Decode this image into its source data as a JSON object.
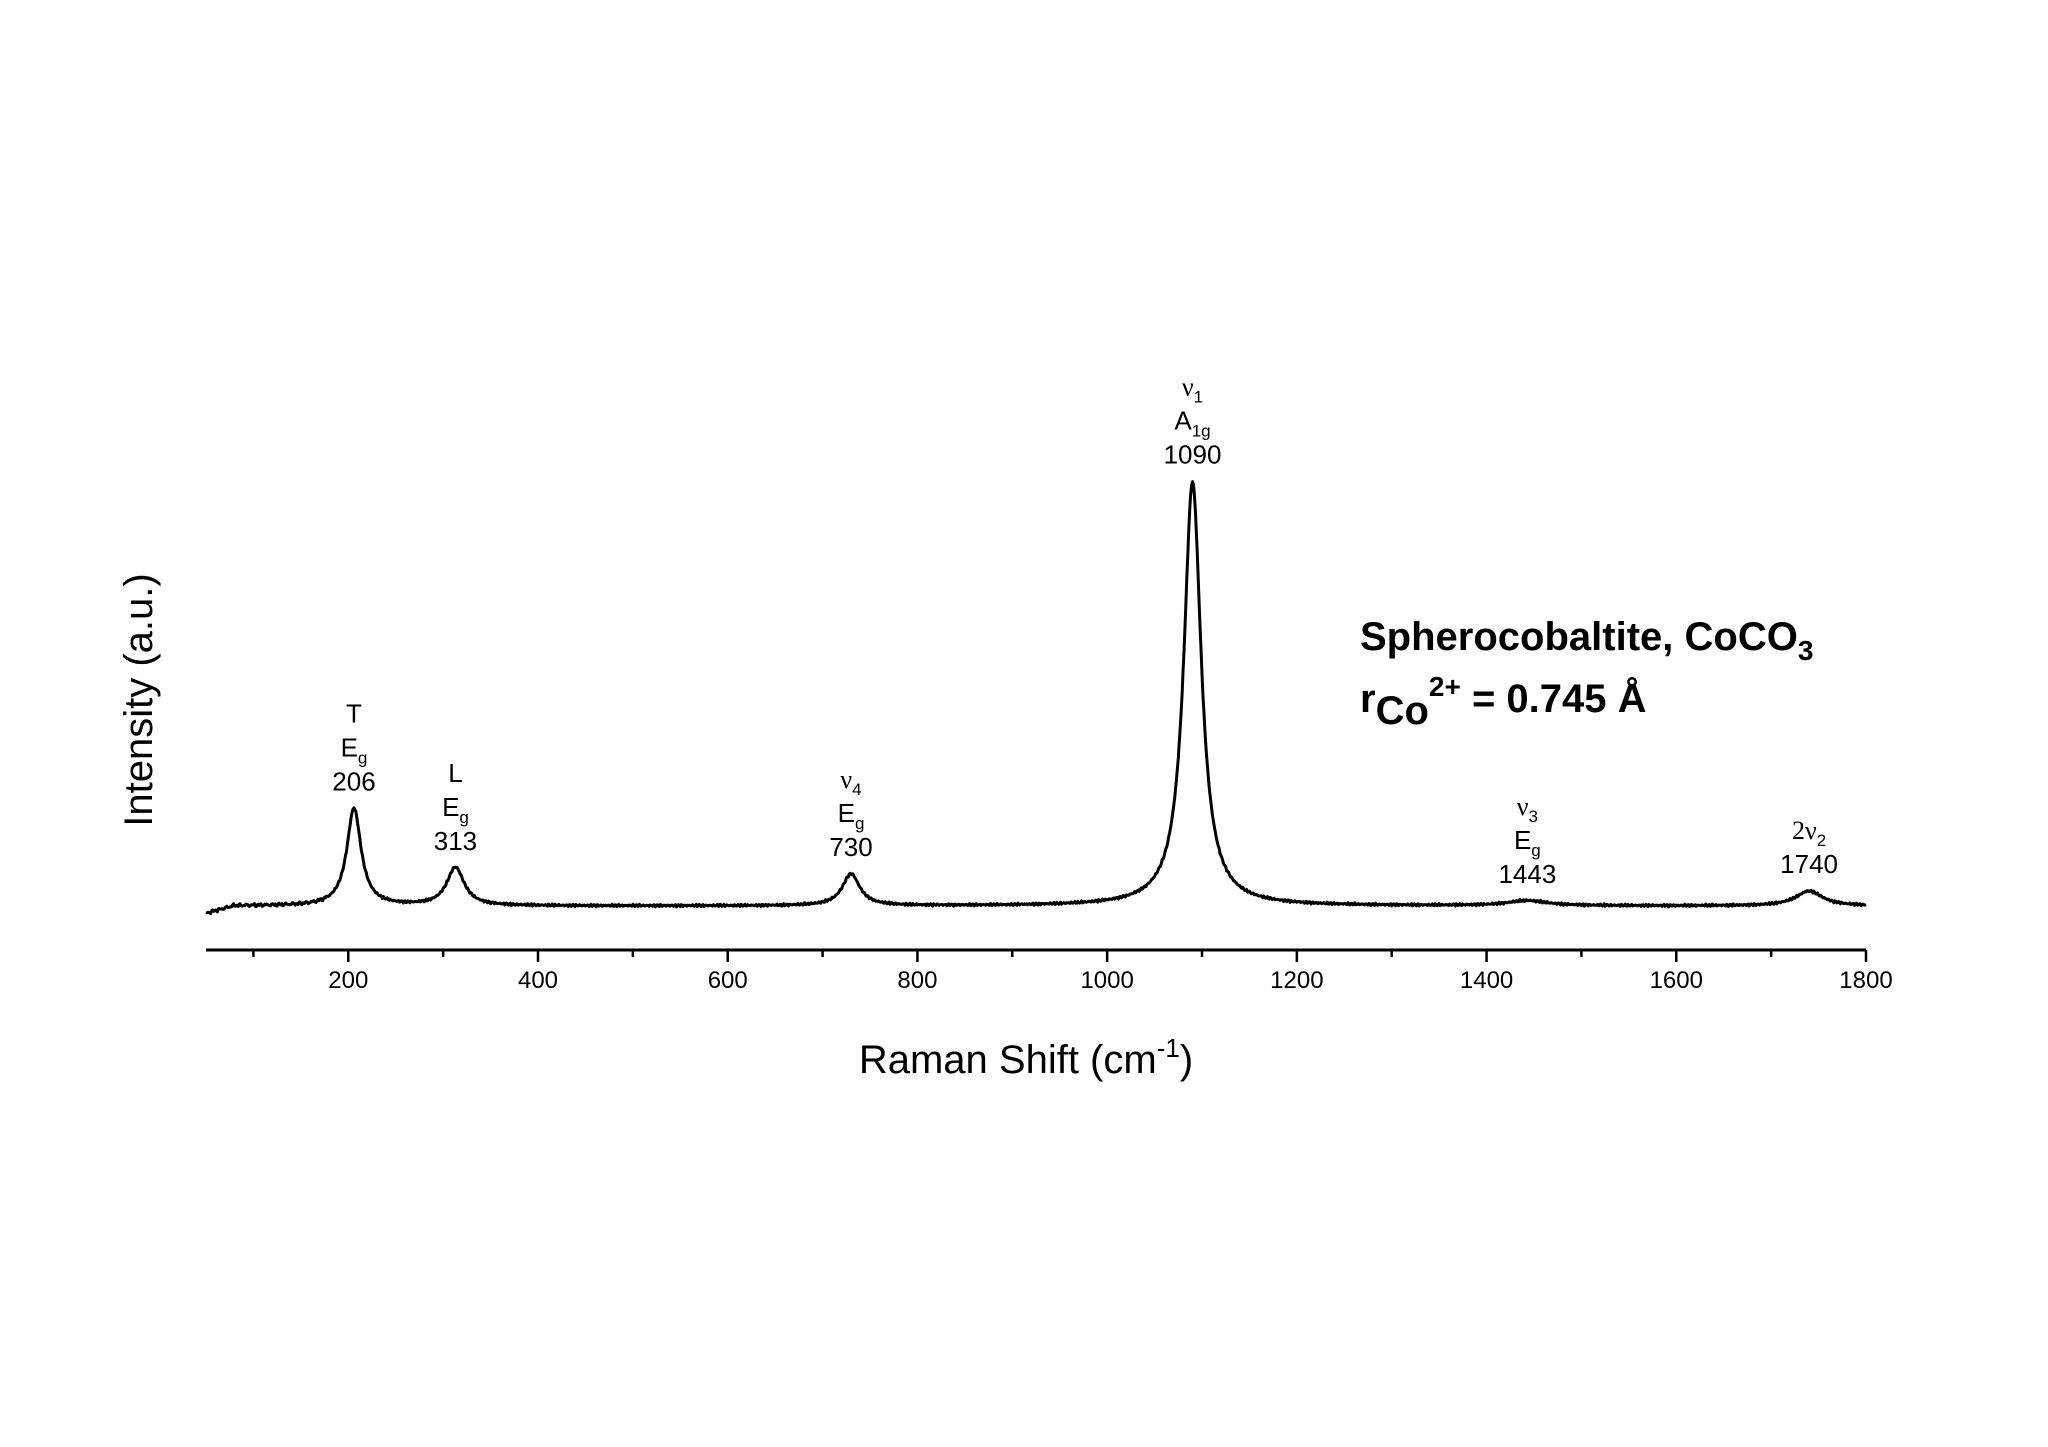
{
  "chart_data": {
    "type": "line",
    "title": "",
    "xlabel": "Raman Shift (cm",
    "xlabel_sup": "-1",
    "xlabel_end": ")",
    "ylabel": "Intensity (a.u.)",
    "xlim": [
      50,
      1800
    ],
    "ylim": [
      0,
      1
    ],
    "x_ticks": [
      200,
      400,
      600,
      800,
      1000,
      1200,
      1400,
      1600,
      1800
    ],
    "grid": false,
    "baseline": 0.02,
    "peaks": [
      {
        "x": 206,
        "height": 0.23,
        "width": 9
      },
      {
        "x": 313,
        "height": 0.09,
        "width": 11
      },
      {
        "x": 730,
        "height": 0.075,
        "width": 11
      },
      {
        "x": 1090,
        "height": 1.0,
        "width": 11
      },
      {
        "x": 1443,
        "height": 0.012,
        "width": 25
      },
      {
        "x": 1740,
        "height": 0.035,
        "width": 17
      }
    ],
    "annotation": {
      "line1": "Spherocobaltite, CoCO",
      "line1_sub": "3",
      "line2_r": "r",
      "line2_sub": "Co",
      "line2_sup": "2+",
      "line2_rest": " = 0.745 Å"
    },
    "peak_labels": [
      {
        "x": 206,
        "lines": [
          {
            "main": "T"
          },
          {
            "main": "E",
            "sub": "g"
          },
          {
            "main": "206"
          }
        ]
      },
      {
        "x": 313,
        "lines": [
          {
            "main": "L"
          },
          {
            "main": "E",
            "sub": "g"
          },
          {
            "main": "313"
          }
        ]
      },
      {
        "x": 730,
        "lines": [
          {
            "greek": "ν",
            "sub": "4"
          },
          {
            "main": "E",
            "sub": "g"
          },
          {
            "main": "730"
          }
        ]
      },
      {
        "x": 1090,
        "lines": [
          {
            "greek": "ν",
            "sub": "1"
          },
          {
            "main": "A",
            "sub": "1g"
          },
          {
            "main": "1090"
          }
        ]
      },
      {
        "x": 1443,
        "lines": [
          {
            "greek": "ν",
            "sub": "3"
          },
          {
            "main": "E",
            "sub": "g"
          },
          {
            "main": "1443"
          }
        ]
      },
      {
        "x": 1740,
        "lines": [
          {
            "greek": "2ν",
            "sub": "2"
          },
          {
            "main": "1740"
          }
        ]
      }
    ]
  }
}
